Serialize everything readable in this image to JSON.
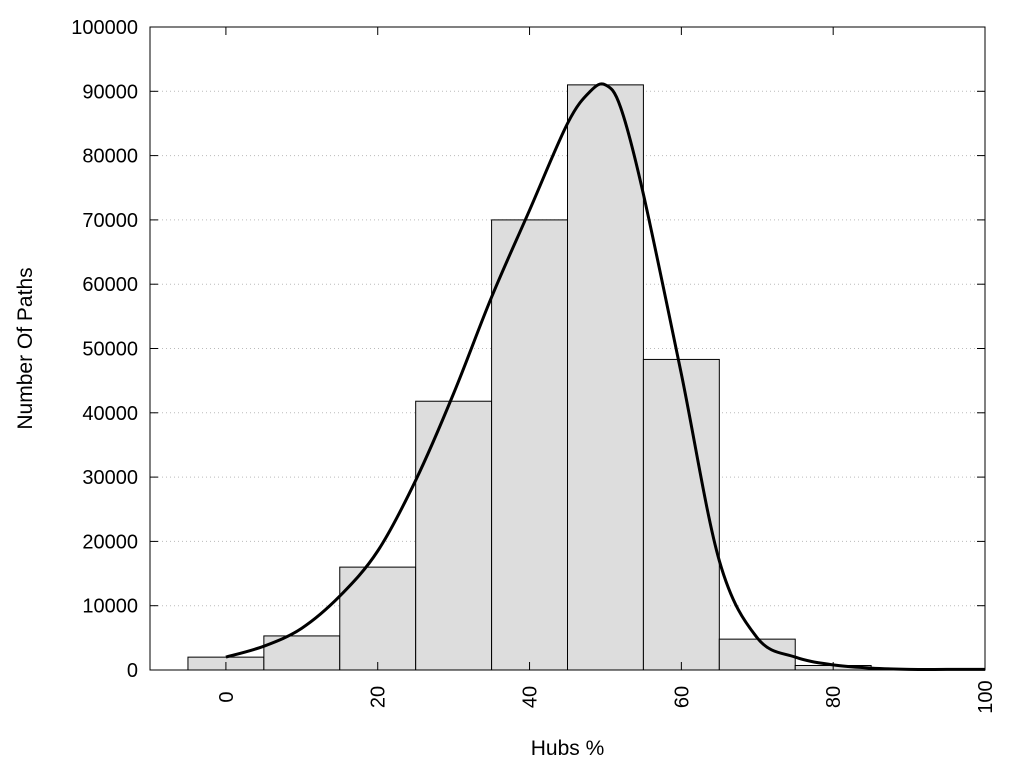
{
  "chart_data": {
    "type": "bar",
    "title": "",
    "xlabel": "Hubs %",
    "ylabel": "Number Of Paths",
    "xlim": [
      -10,
      100
    ],
    "ylim": [
      0,
      100000
    ],
    "x_ticks": [
      0,
      20,
      40,
      60,
      80,
      100
    ],
    "y_ticks": [
      0,
      10000,
      20000,
      30000,
      40000,
      50000,
      60000,
      70000,
      80000,
      90000,
      100000
    ],
    "grid": "horizontal-dotted",
    "bins": [
      {
        "start": -5,
        "end": 5,
        "value": 2000
      },
      {
        "start": 5,
        "end": 15,
        "value": 5300
      },
      {
        "start": 15,
        "end": 25,
        "value": 16000
      },
      {
        "start": 25,
        "end": 35,
        "value": 41800
      },
      {
        "start": 35,
        "end": 45,
        "value": 70000
      },
      {
        "start": 45,
        "end": 55,
        "value": 91000
      },
      {
        "start": 55,
        "end": 65,
        "value": 48300
      },
      {
        "start": 65,
        "end": 75,
        "value": 4800
      },
      {
        "start": 75,
        "end": 85,
        "value": 700
      },
      {
        "start": 85,
        "end": 95,
        "value": 0
      },
      {
        "start": 95,
        "end": 105,
        "value": 0
      }
    ],
    "curve": {
      "x": [
        0,
        5,
        10,
        15,
        20,
        25,
        30,
        35,
        40,
        45,
        48,
        50,
        52,
        55,
        60,
        65,
        70,
        75,
        80,
        85,
        90,
        95,
        100
      ],
      "y": [
        2000,
        3700,
        6500,
        11500,
        18500,
        29500,
        43000,
        58000,
        71500,
        85000,
        90000,
        91000,
        87500,
        74000,
        46000,
        17000,
        5000,
        2000,
        800,
        300,
        100,
        100,
        100
      ]
    },
    "colors": {
      "bar_fill": "#dddddd",
      "bar_stroke": "#000000",
      "curve": "#000000",
      "grid": "#bbbbbb"
    }
  }
}
